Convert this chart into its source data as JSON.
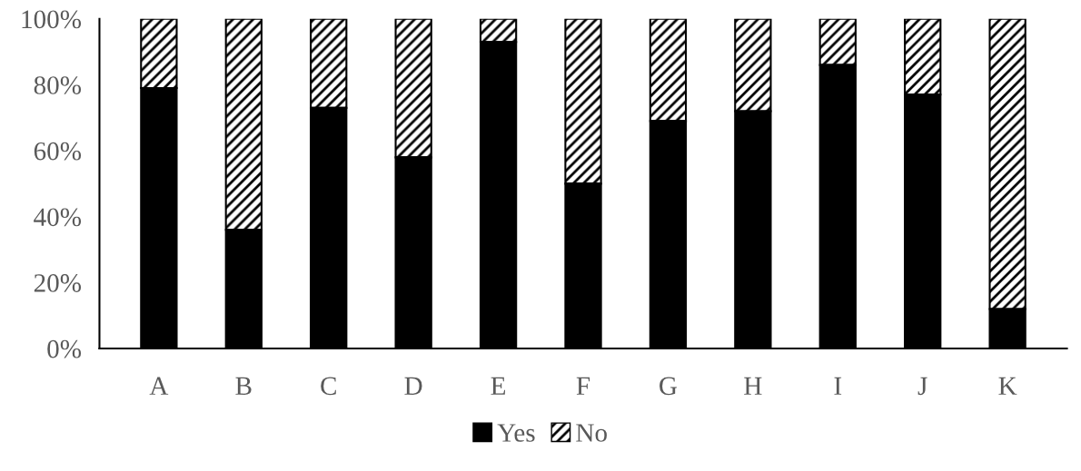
{
  "chart_data": {
    "type": "bar",
    "stacked": true,
    "categories": [
      "A",
      "B",
      "C",
      "D",
      "E",
      "F",
      "G",
      "H",
      "I",
      "J",
      "K"
    ],
    "series": [
      {
        "name": "Yes",
        "color": "#000000",
        "values": [
          79,
          36,
          73,
          58,
          93,
          50,
          69,
          72,
          86,
          77,
          12
        ]
      },
      {
        "name": "No",
        "color": "#000000",
        "values": [
          21,
          64,
          27,
          42,
          7,
          50,
          31,
          28,
          14,
          23,
          88
        ]
      }
    ],
    "ylim": [
      0,
      100
    ],
    "yticks": [
      {
        "value": 0,
        "label": "0%"
      },
      {
        "value": 20,
        "label": "20%"
      },
      {
        "value": 40,
        "label": "40%"
      },
      {
        "value": 60,
        "label": "60%"
      },
      {
        "value": 80,
        "label": "80%"
      },
      {
        "value": 100,
        "label": "100%"
      }
    ],
    "grid": false,
    "legend": "bottom"
  }
}
